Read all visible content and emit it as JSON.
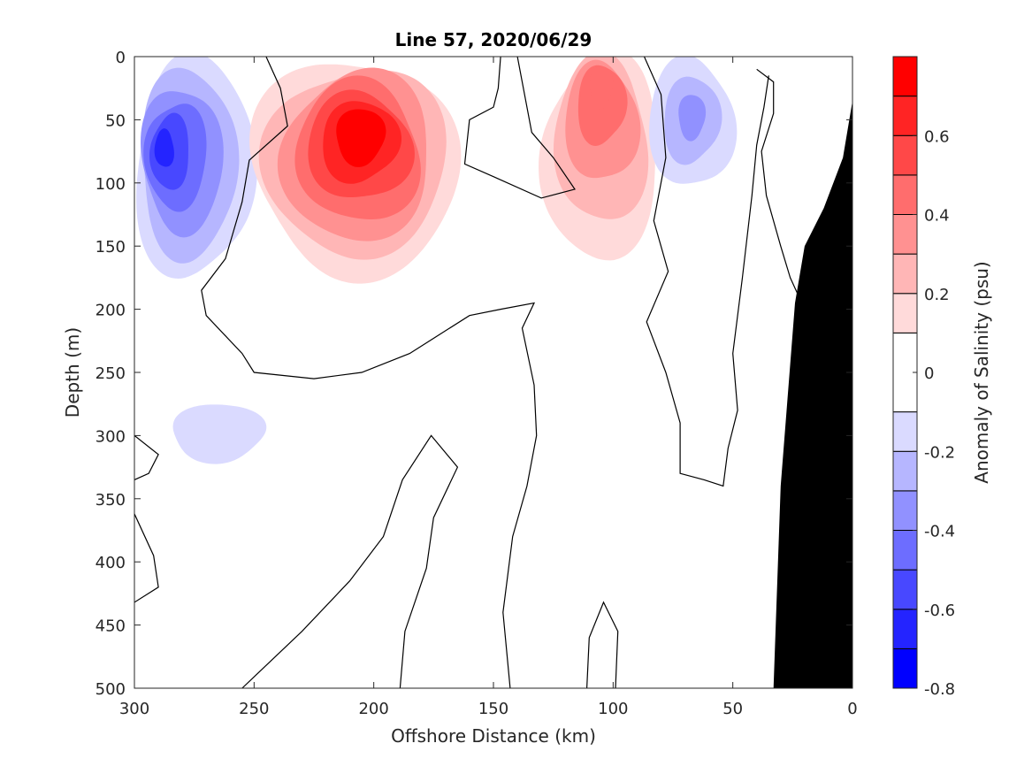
{
  "chart_data": {
    "type": "heatmap",
    "title": "Line 57, 2020/06/29",
    "xlabel": "Offshore Distance (km)",
    "ylabel": "Depth (m)",
    "xlim": [
      300,
      0
    ],
    "ylim": [
      0,
      500
    ],
    "x_reversed": true,
    "y_reversed": true,
    "xticks": [
      300,
      250,
      200,
      150,
      100,
      50,
      0
    ],
    "yticks": [
      0,
      50,
      100,
      150,
      200,
      250,
      300,
      350,
      400,
      450,
      500
    ],
    "colorbar": {
      "label": "Anomaly of Salinity (psu)",
      "range": [
        -0.8,
        0.8
      ],
      "ticks": [
        -0.8,
        -0.6,
        -0.4,
        -0.2,
        0,
        0.2,
        0.4,
        0.6
      ],
      "levels": [
        -0.8,
        -0.7,
        -0.6,
        -0.5,
        -0.4,
        -0.3,
        -0.2,
        -0.1,
        0.1,
        0.2,
        0.3,
        0.4,
        0.5,
        0.6,
        0.7,
        0.8
      ],
      "colors": [
        "#0000ff",
        "#2424ff",
        "#4848ff",
        "#6d6dff",
        "#9191ff",
        "#b6b6ff",
        "#dadaff",
        "#ffffff",
        "#ffdada",
        "#ffb6b6",
        "#ff9191",
        "#ff6d6d",
        "#ff4848",
        "#ff2424",
        "#ff0000"
      ]
    },
    "colors": {
      "land": "#000000",
      "contour": "#000000"
    },
    "anomaly_features": [
      {
        "name": "fresh core offshore",
        "x": 290,
        "depth": 70,
        "peak": -0.6,
        "spread_x": [
          250,
          300
        ],
        "spread_depth": [
          0,
          175
        ]
      },
      {
        "name": "salty core mid-shelf",
        "x": 205,
        "depth": 55,
        "peak": 0.8,
        "spread_x": [
          165,
          250
        ],
        "spread_depth": [
          0,
          175
        ]
      },
      {
        "name": "salty near-surface band",
        "x": 105,
        "depth": 10,
        "peak": 0.5,
        "spread_x": [
          80,
          130
        ],
        "spread_depth": [
          0,
          160
        ]
      },
      {
        "name": "fresh lens nearshore",
        "x": 67,
        "depth": 45,
        "peak": -0.3,
        "spread_x": [
          50,
          85
        ],
        "spread_depth": [
          0,
          105
        ]
      },
      {
        "name": "weak fresh patch",
        "x": 262,
        "depth": 300,
        "peak": -0.15,
        "spread_x": [
          245,
          285
        ],
        "spread_depth": [
          275,
          320
        ]
      }
    ],
    "bathymetry": [
      [
        33,
        500
      ],
      [
        30,
        340
      ],
      [
        24,
        195
      ],
      [
        20,
        150
      ],
      [
        12,
        120
      ],
      [
        4,
        80
      ],
      [
        0,
        35
      ]
    ]
  }
}
